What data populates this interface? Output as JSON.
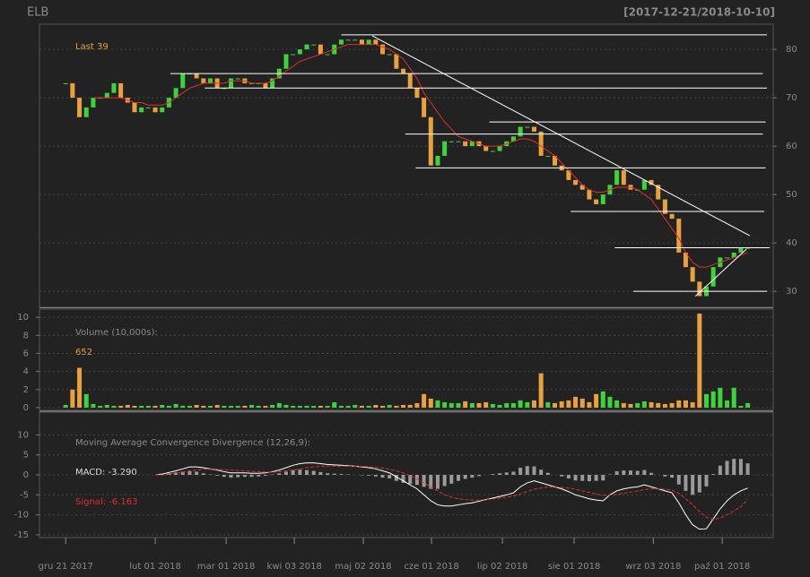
{
  "chart_data": [
    {
      "type": "candlestick",
      "title": "ELB",
      "subtitle": "[2017-12-21/2018-10-10]",
      "annotation": "Last 39",
      "xlim": [
        -3.8,
        102.7
      ],
      "ylim": [
        26.7,
        85.2
      ],
      "yticks": [
        30,
        40,
        50,
        60,
        70,
        80
      ],
      "grid": true,
      "up_color": "#3ed33e",
      "down_color": "#e8a040",
      "close": [
        73,
        70,
        66,
        68,
        70,
        70,
        71,
        73,
        70,
        69,
        67,
        68,
        68,
        67,
        68,
        70,
        72,
        75,
        75,
        74,
        73,
        74,
        72,
        72,
        74,
        74,
        73,
        73,
        73,
        72,
        74,
        76,
        79,
        79,
        80,
        81,
        81,
        79,
        79,
        81,
        82,
        82,
        82,
        81,
        82,
        81,
        79,
        79,
        76,
        75,
        72,
        70,
        66,
        56,
        58,
        61,
        61,
        61,
        60,
        61,
        60,
        59,
        59,
        60,
        61,
        62,
        64,
        64,
        63,
        58,
        58,
        56,
        55,
        53,
        52,
        51,
        49,
        48,
        50,
        52,
        55,
        52,
        51,
        51,
        53,
        52,
        49,
        46,
        45,
        38,
        35,
        32,
        29,
        31,
        35,
        37,
        37,
        38,
        39,
        39
      ],
      "ma": {
        "color": "#e0302a",
        "values": [
          null,
          null,
          null,
          null,
          70,
          70,
          70,
          70,
          70,
          69.5,
          69,
          69,
          68.5,
          68.5,
          68.5,
          69,
          70,
          71,
          72,
          72.5,
          73,
          73,
          73,
          73,
          73.5,
          73.5,
          73.5,
          73,
          73,
          73,
          73.5,
          74.5,
          75.5,
          76.5,
          77.5,
          78,
          78.5,
          79,
          79.5,
          80,
          80.5,
          81,
          81,
          81,
          81,
          81,
          80.5,
          80,
          79,
          78,
          76,
          74,
          71,
          69,
          67,
          65,
          63.5,
          62,
          61.5,
          61,
          60.5,
          60,
          60,
          60,
          60.5,
          61,
          61.5,
          61.5,
          61,
          60,
          59,
          58,
          56.5,
          55,
          53.5,
          52,
          51,
          50.5,
          50.5,
          51,
          51.5,
          51.5,
          51.5,
          51,
          50,
          49,
          47,
          45,
          43,
          41,
          38,
          36,
          35,
          35,
          35.5,
          36,
          36.5,
          37,
          37.5,
          38
        ]
      },
      "line_color": "#ffffff",
      "hlines": [
        {
          "y": 83,
          "x": [
            40,
            101.8
          ]
        },
        {
          "y": 75,
          "x": [
            15.2,
            101.2
          ]
        },
        {
          "y": 72,
          "x": [
            20.2,
            101.8
          ]
        },
        {
          "y": 65,
          "x": [
            61.5,
            101.6
          ]
        },
        {
          "y": 62.5,
          "x": [
            49.3,
            101.2
          ]
        },
        {
          "y": 55.5,
          "x": [
            50.8,
            101.6
          ]
        },
        {
          "y": 46.5,
          "x": [
            73.3,
            101.4
          ]
        },
        {
          "y": 39,
          "x": [
            79.7,
            102.2
          ]
        },
        {
          "y": 30,
          "x": [
            82.4,
            101.8
          ]
        }
      ],
      "trendlines": [
        {
          "x": [
            44.5,
            99.3
          ],
          "y": [
            82.8,
            41.5
          ]
        },
        {
          "x": [
            91.4,
            98.8
          ],
          "y": [
            29,
            38.7
          ]
        }
      ]
    },
    {
      "type": "bar",
      "annotation": "Volume (10,000s):",
      "last_label": "652",
      "ylim": [
        -0.3,
        10.9
      ],
      "yticks": [
        0,
        2,
        4,
        6,
        8,
        10
      ],
      "grid": true,
      "values": [
        0.3,
        2,
        4.4,
        1.5,
        0.4,
        0.2,
        0.3,
        0.2,
        0.2,
        0.3,
        0.2,
        0.2,
        0.2,
        0.2,
        0.3,
        0.2,
        0.4,
        0.2,
        0.2,
        0.3,
        0.2,
        0.2,
        0.3,
        0.2,
        0.2,
        0.2,
        0.2,
        0.3,
        0.2,
        0.2,
        0.3,
        0.5,
        0.3,
        0.2,
        0.2,
        0.2,
        0.2,
        0.2,
        0.2,
        0.6,
        0.2,
        0.2,
        0.3,
        0.2,
        0.2,
        0.3,
        0.2,
        0.3,
        0.2,
        0.3,
        0.3,
        0.5,
        1.5,
        1,
        0.8,
        0.6,
        0.5,
        0.5,
        0.7,
        0.5,
        0.5,
        0.6,
        0.4,
        0.3,
        0.5,
        0.5,
        0.8,
        0.6,
        0.8,
        3.8,
        0.6,
        0.5,
        0.7,
        0.8,
        1.2,
        1,
        0.6,
        1.5,
        1.8,
        1.2,
        0.8,
        0.5,
        0.4,
        0.5,
        0.7,
        0.6,
        0.5,
        0.4,
        0.5,
        0.8,
        0.8,
        0.6,
        10.4,
        1.5,
        1.8,
        2.2,
        0.8,
        2.2,
        0.2,
        0.5
      ]
    },
    {
      "type": "line",
      "title": "Moving Average Convergence Divergence (12,26,9):",
      "ylim": [
        -15.7,
        15.7
      ],
      "yticks": [
        -15,
        -10,
        -5,
        0,
        5,
        10
      ],
      "grid": true,
      "hist_color": "#9a9a9a",
      "xticks": [
        {
          "value": 0,
          "label": "gru 21 2017"
        },
        {
          "value": 13,
          "label": "lut 01 2018"
        },
        {
          "value": 23.3,
          "label": "mar 01 2018"
        },
        {
          "value": 33.2,
          "label": "kwi 03 2018"
        },
        {
          "value": 43.2,
          "label": "maj 02 2018"
        },
        {
          "value": 53.1,
          "label": "cze 01 2018"
        },
        {
          "value": 63.4,
          "label": "lip 02 2018"
        },
        {
          "value": 73.8,
          "label": "sie 01 2018"
        },
        {
          "value": 85.3,
          "label": "wrz 03 2018"
        },
        {
          "value": 95.3,
          "label": "paź 01 2018"
        }
      ],
      "series": [
        {
          "label": "MACD: -3.290",
          "color": "#ffffff",
          "values": [
            null,
            null,
            null,
            null,
            null,
            null,
            null,
            null,
            null,
            null,
            null,
            null,
            null,
            0,
            0.2,
            0.6,
            1,
            1.5,
            2,
            2,
            1.8,
            1.5,
            1.2,
            0.8,
            0.5,
            0.5,
            0.5,
            0.4,
            0.4,
            0.5,
            0.8,
            1.2,
            1.8,
            2.4,
            2.8,
            3,
            3,
            2.8,
            2.6,
            2.5,
            2.4,
            2.3,
            2.2,
            2,
            1.8,
            1.5,
            1,
            0.5,
            -0.5,
            -1.5,
            -2.5,
            -3.5,
            -5,
            -6.5,
            -7.5,
            -7.8,
            -7.8,
            -7.5,
            -7.2,
            -7,
            -6.6,
            -6.2,
            -5.8,
            -5.4,
            -5,
            -4.5,
            -3,
            -2,
            -1.5,
            -2,
            -2.5,
            -3,
            -3.5,
            -4.2,
            -5,
            -5.5,
            -6,
            -6.3,
            -6.5,
            -5,
            -4,
            -3.5,
            -3.2,
            -3,
            -2.5,
            -3,
            -3.5,
            -4,
            -4.5,
            -7,
            -10,
            -12.5,
            -13.6,
            -13.5,
            -11,
            -8.5,
            -6.5,
            -5,
            -4,
            -3.29
          ]
        },
        {
          "label": "Signal: -6.163",
          "color": "#e0302a",
          "dash": true,
          "values": [
            null,
            null,
            null,
            null,
            null,
            null,
            null,
            null,
            null,
            null,
            null,
            null,
            null,
            0,
            0,
            0.2,
            0.4,
            0.7,
            1,
            1.2,
            1.4,
            1.4,
            1.4,
            1.3,
            1.2,
            1.1,
            1,
            0.9,
            0.8,
            0.7,
            0.7,
            0.8,
            1,
            1.2,
            1.5,
            1.8,
            2,
            2.1,
            2.2,
            2.2,
            2.2,
            2.2,
            2.2,
            2.1,
            2,
            1.9,
            1.7,
            1.4,
            1,
            0.5,
            -0.2,
            -1,
            -2,
            -3,
            -4,
            -5,
            -5.6,
            -6,
            -6.2,
            -6.3,
            -6.3,
            -6.2,
            -6,
            -5.8,
            -5.6,
            -5.3,
            -4.8,
            -4.2,
            -3.6,
            -3.3,
            -3,
            -3,
            -3.1,
            -3.3,
            -3.6,
            -4,
            -4.4,
            -4.8,
            -5.1,
            -5.1,
            -4.9,
            -4.6,
            -4.3,
            -4,
            -3.7,
            -3.5,
            -3.5,
            -3.6,
            -3.8,
            -4.6,
            -6,
            -7.5,
            -9.2,
            -10.6,
            -11.2,
            -10.8,
            -10,
            -9,
            -8,
            -6.163
          ]
        }
      ]
    }
  ]
}
